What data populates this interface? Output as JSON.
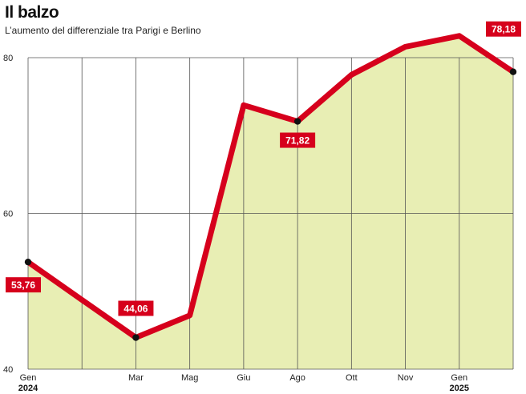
{
  "chart_data": {
    "type": "area",
    "title": "Il balzo",
    "subtitle": "L’aumento del differenziale tra Parigi e Berlino",
    "xlabel": "",
    "ylabel": "",
    "ylim": [
      40,
      80
    ],
    "yticks": [
      40,
      60,
      80
    ],
    "grid": true,
    "colors": {
      "line": "#d6001c",
      "fill": "#e8eeb4",
      "grid": "#555555",
      "marker": "#111111",
      "label_bg": "#d6001c"
    },
    "x_ticks": [
      {
        "label": "Gen",
        "year": "2024",
        "index": 0
      },
      {
        "label": "Mar",
        "year": "",
        "index": 2
      },
      {
        "label": "Mag",
        "year": "",
        "index": 3
      },
      {
        "label": "Giu",
        "year": "",
        "index": 4
      },
      {
        "label": "Ago",
        "year": "",
        "index": 5
      },
      {
        "label": "Ott",
        "year": "",
        "index": 6
      },
      {
        "label": "Nov",
        "year": "",
        "index": 7
      },
      {
        "label": "Gen",
        "year": "2025",
        "index": 8
      }
    ],
    "series": [
      {
        "values": [
          53.76,
          48.9,
          44.06,
          46.9,
          73.9,
          71.82,
          77.8,
          81.4,
          82.8,
          78.18
        ]
      }
    ],
    "markers": [
      0,
      2,
      5,
      9
    ],
    "data_labels": [
      {
        "text": "53,76",
        "index": 0,
        "placement": "below-right"
      },
      {
        "text": "44,06",
        "index": 2,
        "placement": "above"
      },
      {
        "text": "71,82",
        "index": 5,
        "placement": "below"
      },
      {
        "text": "78,18",
        "index": 9,
        "placement": "above-left"
      }
    ]
  }
}
